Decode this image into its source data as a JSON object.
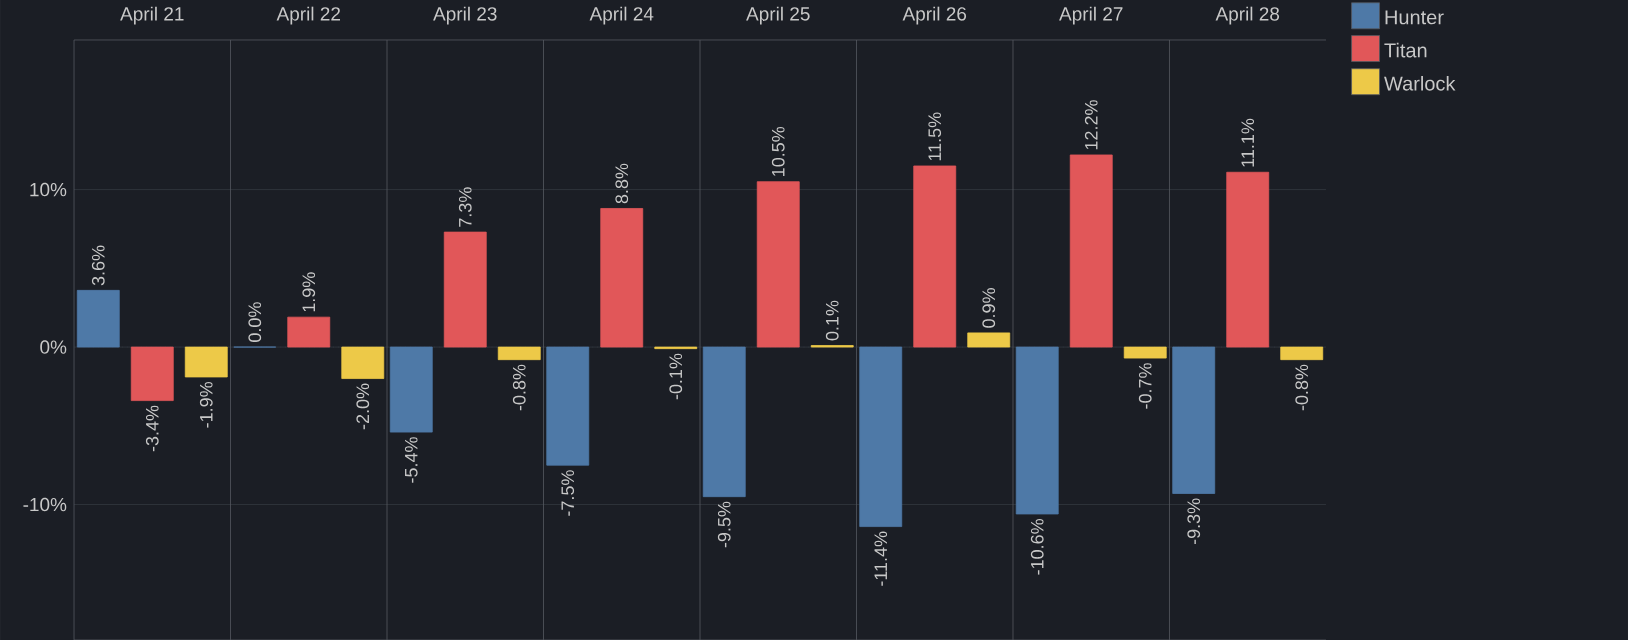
{
  "chart_data": {
    "type": "bar",
    "categories": [
      "April 21",
      "April 22",
      "April 23",
      "April 24",
      "April 25",
      "April 26",
      "April 27",
      "April 28"
    ],
    "series": [
      {
        "name": "Hunter",
        "color": "#4e79a7",
        "values": [
          3.6,
          0.0,
          -5.4,
          -7.5,
          -9.5,
          -11.4,
          -10.6,
          -9.3
        ],
        "value_labels": [
          "3.6%",
          "0.0%",
          "-5.4%",
          "-7.5%",
          "-9.5%",
          "-11.4%",
          "-10.6%",
          "-9.3%"
        ]
      },
      {
        "name": "Titan",
        "color": "#e15759",
        "values": [
          -3.4,
          1.9,
          7.3,
          8.8,
          10.5,
          11.5,
          12.2,
          11.1
        ],
        "value_labels": [
          "-3.4%",
          "1.9%",
          "7.3%",
          "8.8%",
          "10.5%",
          "11.5%",
          "12.2%",
          "11.1%"
        ]
      },
      {
        "name": "Warlock",
        "color": "#edc948",
        "values": [
          -1.9,
          -2.0,
          -0.8,
          -0.1,
          0.1,
          0.9,
          -0.7,
          -0.8
        ],
        "value_labels": [
          "-1.9%",
          "-2.0%",
          "-0.8%",
          "-0.1%",
          "0.1%",
          "0.9%",
          "-0.7%",
          "-0.8%"
        ]
      }
    ],
    "ylim": [
      -18.6,
      19.5
    ],
    "yticks": [
      {
        "value": -10,
        "label": "-10%"
      },
      {
        "value": 0,
        "label": "0%"
      },
      {
        "value": 10,
        "label": "10%"
      }
    ],
    "grid": "y",
    "legend": "top right"
  }
}
